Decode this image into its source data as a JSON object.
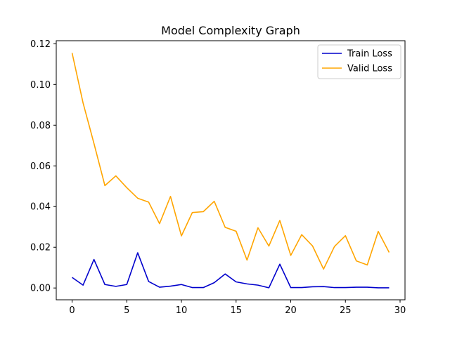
{
  "chart_data": {
    "type": "line",
    "title": "Model Complexity Graph",
    "xlabel": "",
    "ylabel": "",
    "xlim": [
      -1.45,
      30.45
    ],
    "ylim": [
      -0.0058,
      0.1215
    ],
    "xticks": [
      0,
      5,
      10,
      15,
      20,
      25,
      30
    ],
    "yticks": [
      0.0,
      0.02,
      0.04,
      0.06,
      0.08,
      0.1,
      0.12
    ],
    "ytick_labels": [
      "0.00",
      "0.02",
      "0.04",
      "0.06",
      "0.08",
      "0.10",
      "0.12"
    ],
    "grid": false,
    "legend_position": "top-right",
    "x": [
      0,
      1,
      2,
      3,
      4,
      5,
      6,
      7,
      8,
      9,
      10,
      11,
      12,
      13,
      14,
      15,
      16,
      17,
      18,
      19,
      20,
      21,
      22,
      23,
      24,
      25,
      26,
      27,
      28,
      29
    ],
    "series": [
      {
        "name": "Train Loss",
        "color": "#0000cc",
        "values": [
          0.0052,
          0.0014,
          0.014,
          0.0017,
          0.0008,
          0.0017,
          0.0173,
          0.0032,
          0.0004,
          0.0009,
          0.0017,
          0.0002,
          0.0002,
          0.0026,
          0.0069,
          0.003,
          0.002,
          0.0014,
          0.0001,
          0.0117,
          0.0002,
          0.0002,
          0.0006,
          0.0007,
          0.0002,
          0.0002,
          0.0004,
          0.0004,
          0.0001,
          0.0001
        ]
      },
      {
        "name": "Valid Loss",
        "color": "#ffa500",
        "values": [
          0.1155,
          0.091,
          0.071,
          0.0503,
          0.0551,
          0.0493,
          0.0441,
          0.0422,
          0.0316,
          0.045,
          0.0256,
          0.0371,
          0.0375,
          0.0426,
          0.0298,
          0.0279,
          0.0137,
          0.0296,
          0.0206,
          0.0332,
          0.016,
          0.0262,
          0.0206,
          0.0093,
          0.0204,
          0.0257,
          0.0133,
          0.0113,
          0.0278,
          0.0175
        ]
      }
    ]
  }
}
